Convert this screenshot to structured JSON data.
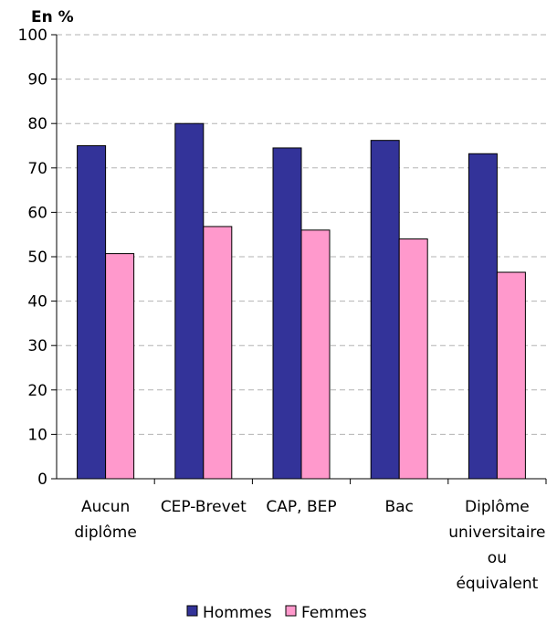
{
  "chart_data": {
    "type": "bar",
    "unit_label": "En %",
    "categories": [
      [
        "Aucun",
        "diplôme"
      ],
      [
        "CEP-Brevet"
      ],
      [
        "CAP, BEP"
      ],
      [
        "Bac"
      ],
      [
        "Diplôme",
        "universitaire",
        "ou",
        "équivalent"
      ]
    ],
    "series": [
      {
        "name": "Hommes",
        "color": "#333399",
        "values": [
          75,
          80,
          74.5,
          76.2,
          73.2
        ]
      },
      {
        "name": "Femmes",
        "color": "#ff99cc",
        "values": [
          50.7,
          56.8,
          56,
          54,
          46.5
        ]
      }
    ],
    "ylim": [
      0,
      100
    ],
    "yticks": [
      0,
      10,
      20,
      30,
      40,
      50,
      60,
      70,
      80,
      90,
      100
    ],
    "grid": true,
    "legend": "bottom"
  }
}
